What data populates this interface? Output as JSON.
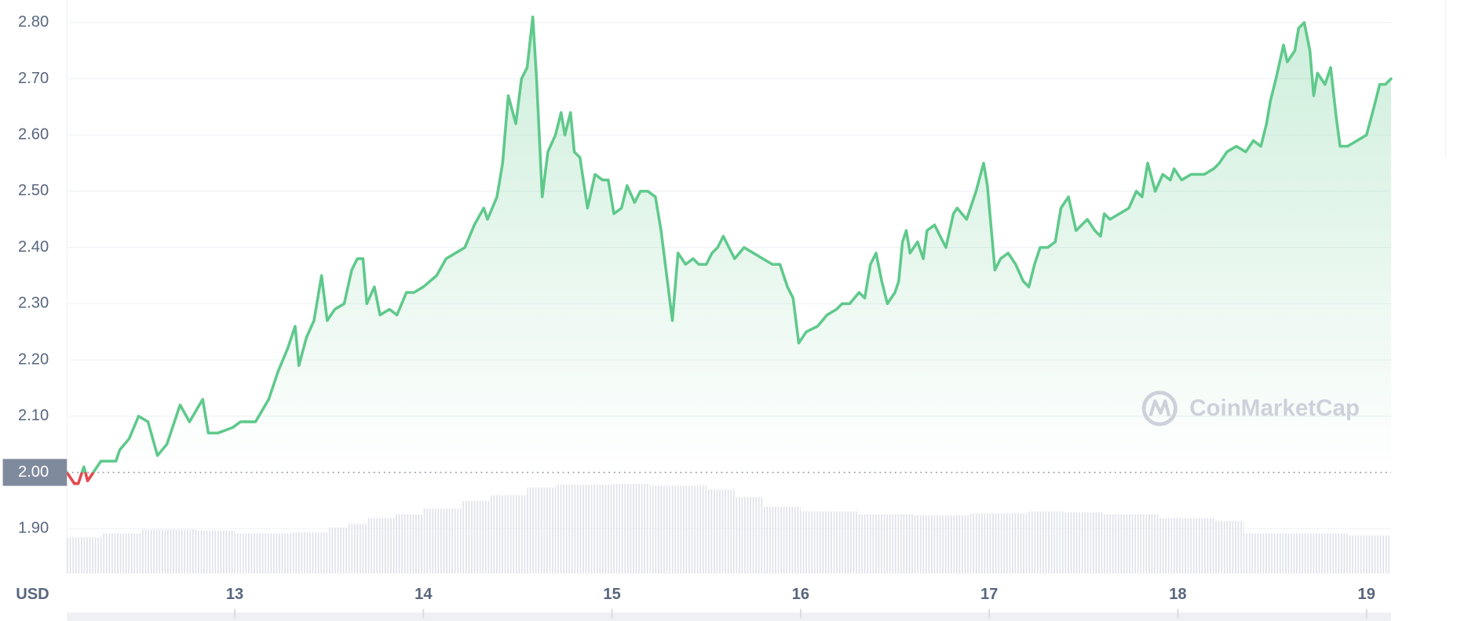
{
  "chart_data": {
    "type": "line",
    "currency": "USD",
    "watermark": "CoinMarketCap",
    "color": "#5fc98b",
    "down_color": "#e5484d",
    "baseline": 2,
    "grid": true,
    "xlim": [
      12.11,
      19.13
    ],
    "xticks": [
      13,
      14,
      15,
      16,
      17,
      18,
      19
    ],
    "ylim": [
      1.82,
      2.84
    ],
    "yticks": [
      {
        "value": 1.9,
        "label": "1.90"
      },
      {
        "value": 2.0,
        "label": "2.00"
      },
      {
        "value": 2.1,
        "label": "2.10"
      },
      {
        "value": 2.2,
        "label": "2.20"
      },
      {
        "value": 2.3,
        "label": "2.30"
      },
      {
        "value": 2.4,
        "label": "2.40"
      },
      {
        "value": 2.5,
        "label": "2.50"
      },
      {
        "value": 2.6,
        "label": "2.60"
      },
      {
        "value": 2.7,
        "label": "2.70"
      },
      {
        "value": 2.8,
        "label": "2.80"
      }
    ],
    "x": [
      12.11,
      12.15,
      12.17,
      12.2,
      12.22,
      12.25,
      12.29,
      12.37,
      12.39,
      12.44,
      12.49,
      12.54,
      12.59,
      12.64,
      12.71,
      12.76,
      12.83,
      12.86,
      12.91,
      12.99,
      13.03,
      13.11,
      13.18,
      13.23,
      13.28,
      13.32,
      13.34,
      13.38,
      13.42,
      13.46,
      13.49,
      13.53,
      13.58,
      13.62,
      13.65,
      13.68,
      13.7,
      13.74,
      13.77,
      13.82,
      13.86,
      13.91,
      13.95,
      14.0,
      14.07,
      14.12,
      14.17,
      14.22,
      14.27,
      14.32,
      14.34,
      14.39,
      14.42,
      14.45,
      14.49,
      14.52,
      14.55,
      14.58,
      14.6,
      14.63,
      14.66,
      14.7,
      14.73,
      14.75,
      14.78,
      14.8,
      14.83,
      14.87,
      14.91,
      14.95,
      14.98,
      15.01,
      15.05,
      15.08,
      15.12,
      15.15,
      15.19,
      15.23,
      15.26,
      15.29,
      15.32,
      15.35,
      15.39,
      15.43,
      15.46,
      15.5,
      15.53,
      15.56,
      15.59,
      15.62,
      15.65,
      15.7,
      15.75,
      15.8,
      15.85,
      15.89,
      15.93,
      15.96,
      15.99,
      16.03,
      16.09,
      16.14,
      16.19,
      16.22,
      16.26,
      16.31,
      16.34,
      16.37,
      16.4,
      16.43,
      16.46,
      16.5,
      16.52,
      16.54,
      16.56,
      16.58,
      16.62,
      16.65,
      16.67,
      16.71,
      16.74,
      16.77,
      16.81,
      16.83,
      16.88,
      16.93,
      16.97,
      16.99,
      17.03,
      17.06,
      17.1,
      17.14,
      17.18,
      17.21,
      17.24,
      17.27,
      17.31,
      17.35,
      17.38,
      17.42,
      17.46,
      17.49,
      17.52,
      17.56,
      17.59,
      17.61,
      17.64,
      17.69,
      17.74,
      17.78,
      17.81,
      17.84,
      17.88,
      17.92,
      17.96,
      17.98,
      18.02,
      18.07,
      18.14,
      18.19,
      18.22,
      18.26,
      18.31,
      18.36,
      18.4,
      18.44,
      18.47,
      18.49,
      18.52,
      18.56,
      18.58,
      18.62,
      18.64,
      18.67,
      18.7,
      18.72,
      18.74,
      18.78,
      18.81,
      18.84,
      18.86,
      18.9,
      18.95,
      19.0,
      19.04,
      19.07,
      19.1,
      19.13
    ],
    "values": [
      2.0,
      1.98,
      1.98,
      2.01,
      1.985,
      2.0,
      2.02,
      2.02,
      2.04,
      2.06,
      2.1,
      2.09,
      2.03,
      2.05,
      2.12,
      2.09,
      2.13,
      2.07,
      2.07,
      2.08,
      2.09,
      2.09,
      2.13,
      2.18,
      2.22,
      2.26,
      2.19,
      2.24,
      2.27,
      2.35,
      2.27,
      2.29,
      2.3,
      2.36,
      2.38,
      2.38,
      2.3,
      2.33,
      2.28,
      2.29,
      2.28,
      2.32,
      2.32,
      2.33,
      2.35,
      2.38,
      2.39,
      2.4,
      2.44,
      2.47,
      2.45,
      2.49,
      2.55,
      2.67,
      2.62,
      2.7,
      2.72,
      2.81,
      2.7,
      2.49,
      2.57,
      2.6,
      2.64,
      2.6,
      2.64,
      2.57,
      2.56,
      2.47,
      2.53,
      2.52,
      2.52,
      2.46,
      2.47,
      2.51,
      2.48,
      2.5,
      2.5,
      2.49,
      2.43,
      2.35,
      2.27,
      2.39,
      2.37,
      2.38,
      2.37,
      2.37,
      2.39,
      2.4,
      2.42,
      2.4,
      2.38,
      2.4,
      2.39,
      2.38,
      2.37,
      2.37,
      2.33,
      2.31,
      2.23,
      2.25,
      2.26,
      2.28,
      2.29,
      2.3,
      2.3,
      2.32,
      2.31,
      2.37,
      2.39,
      2.34,
      2.3,
      2.32,
      2.34,
      2.41,
      2.43,
      2.39,
      2.41,
      2.38,
      2.43,
      2.44,
      2.42,
      2.4,
      2.46,
      2.47,
      2.45,
      2.5,
      2.55,
      2.51,
      2.36,
      2.38,
      2.39,
      2.37,
      2.34,
      2.33,
      2.37,
      2.4,
      2.4,
      2.41,
      2.47,
      2.49,
      2.43,
      2.44,
      2.45,
      2.43,
      2.42,
      2.46,
      2.45,
      2.46,
      2.47,
      2.5,
      2.49,
      2.55,
      2.5,
      2.53,
      2.52,
      2.54,
      2.52,
      2.53,
      2.53,
      2.54,
      2.55,
      2.57,
      2.58,
      2.57,
      2.59,
      2.58,
      2.62,
      2.66,
      2.7,
      2.76,
      2.73,
      2.75,
      2.79,
      2.8,
      2.75,
      2.67,
      2.71,
      2.69,
      2.72,
      2.63,
      2.58,
      2.58,
      2.59,
      2.6,
      2.65,
      2.69,
      2.69,
      2.7
    ],
    "volume_x": [
      12.11,
      12.3,
      12.5,
      12.8,
      13.0,
      13.3,
      13.5,
      13.6,
      13.7,
      13.85,
      14.0,
      14.2,
      14.35,
      14.55,
      14.7,
      15.0,
      15.2,
      15.5,
      15.65,
      15.8,
      16.0,
      16.3,
      16.6,
      16.9,
      17.2,
      17.4,
      17.6,
      17.9,
      18.2,
      18.35,
      18.6,
      18.9
    ],
    "volume_values": [
      38,
      42,
      46,
      45,
      42,
      43,
      48,
      52,
      58,
      62,
      68,
      76,
      82,
      90,
      93,
      94,
      92,
      88,
      80,
      70,
      65,
      62,
      61,
      63,
      65,
      64,
      62,
      58,
      55,
      42,
      42,
      40
    ],
    "volume_ylim": [
      0,
      600
    ]
  }
}
